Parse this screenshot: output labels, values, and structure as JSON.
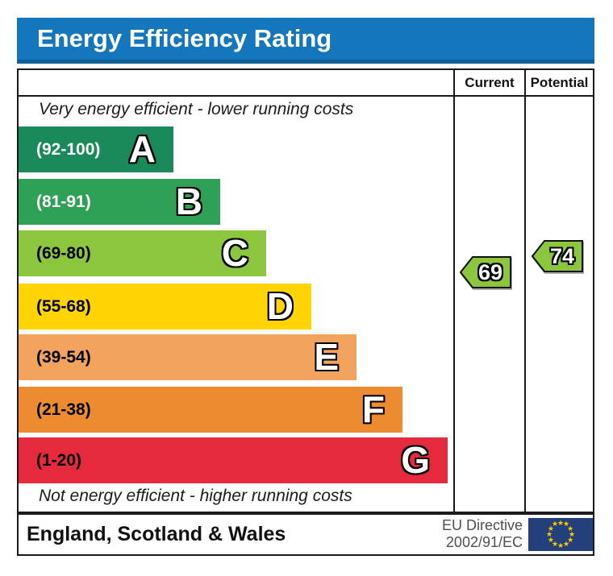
{
  "header": {
    "title": "Energy Efficiency Rating",
    "background": "#1477bd"
  },
  "table": {
    "columns": [
      {
        "label": "Current"
      },
      {
        "label": "Potential"
      }
    ]
  },
  "chart_data": {
    "type": "bar",
    "title": "Energy Efficiency Rating",
    "top_caption": "Very energy efficient - lower running costs",
    "bottom_caption": "Not energy efficient - higher running costs",
    "bands": [
      {
        "letter": "A",
        "label": "(92-100)",
        "range_min": 92,
        "range_max": 100,
        "color": "#1a8a5a",
        "label_color": "#ffffff"
      },
      {
        "letter": "B",
        "label": "(81-91)",
        "range_min": 81,
        "range_max": 91,
        "color": "#2fa156",
        "label_color": "#ffffff"
      },
      {
        "letter": "C",
        "label": "(69-80)",
        "range_min": 69,
        "range_max": 80,
        "color": "#8cc63f",
        "label_color": "#000000"
      },
      {
        "letter": "D",
        "label": "(55-68)",
        "range_min": 55,
        "range_max": 68,
        "color": "#fed402",
        "label_color": "#000000"
      },
      {
        "letter": "E",
        "label": "(39-54)",
        "range_min": 39,
        "range_max": 54,
        "color": "#f2a45f",
        "label_color": "#000000"
      },
      {
        "letter": "F",
        "label": "(21-38)",
        "range_min": 21,
        "range_max": 38,
        "color": "#ee8b31",
        "label_color": "#000000"
      },
      {
        "letter": "G",
        "label": "(1-20)",
        "range_min": 1,
        "range_max": 20,
        "color": "#e52a3e",
        "label_color": "#000000"
      }
    ],
    "ratings": {
      "current": {
        "label": "Current",
        "value": 69,
        "band": "C"
      },
      "potential": {
        "label": "Potential",
        "value": 74,
        "band": "C"
      },
      "arrow_color": "#8cc63f"
    }
  },
  "footer": {
    "region": "England, Scotland & Wales",
    "directive": {
      "line1": "EU Directive",
      "line2": "2002/91/EC"
    },
    "eu_flag": {
      "background": "#24407a",
      "star_color": "#ffcc00",
      "star_count": 12,
      "star_glyph": "★"
    }
  }
}
